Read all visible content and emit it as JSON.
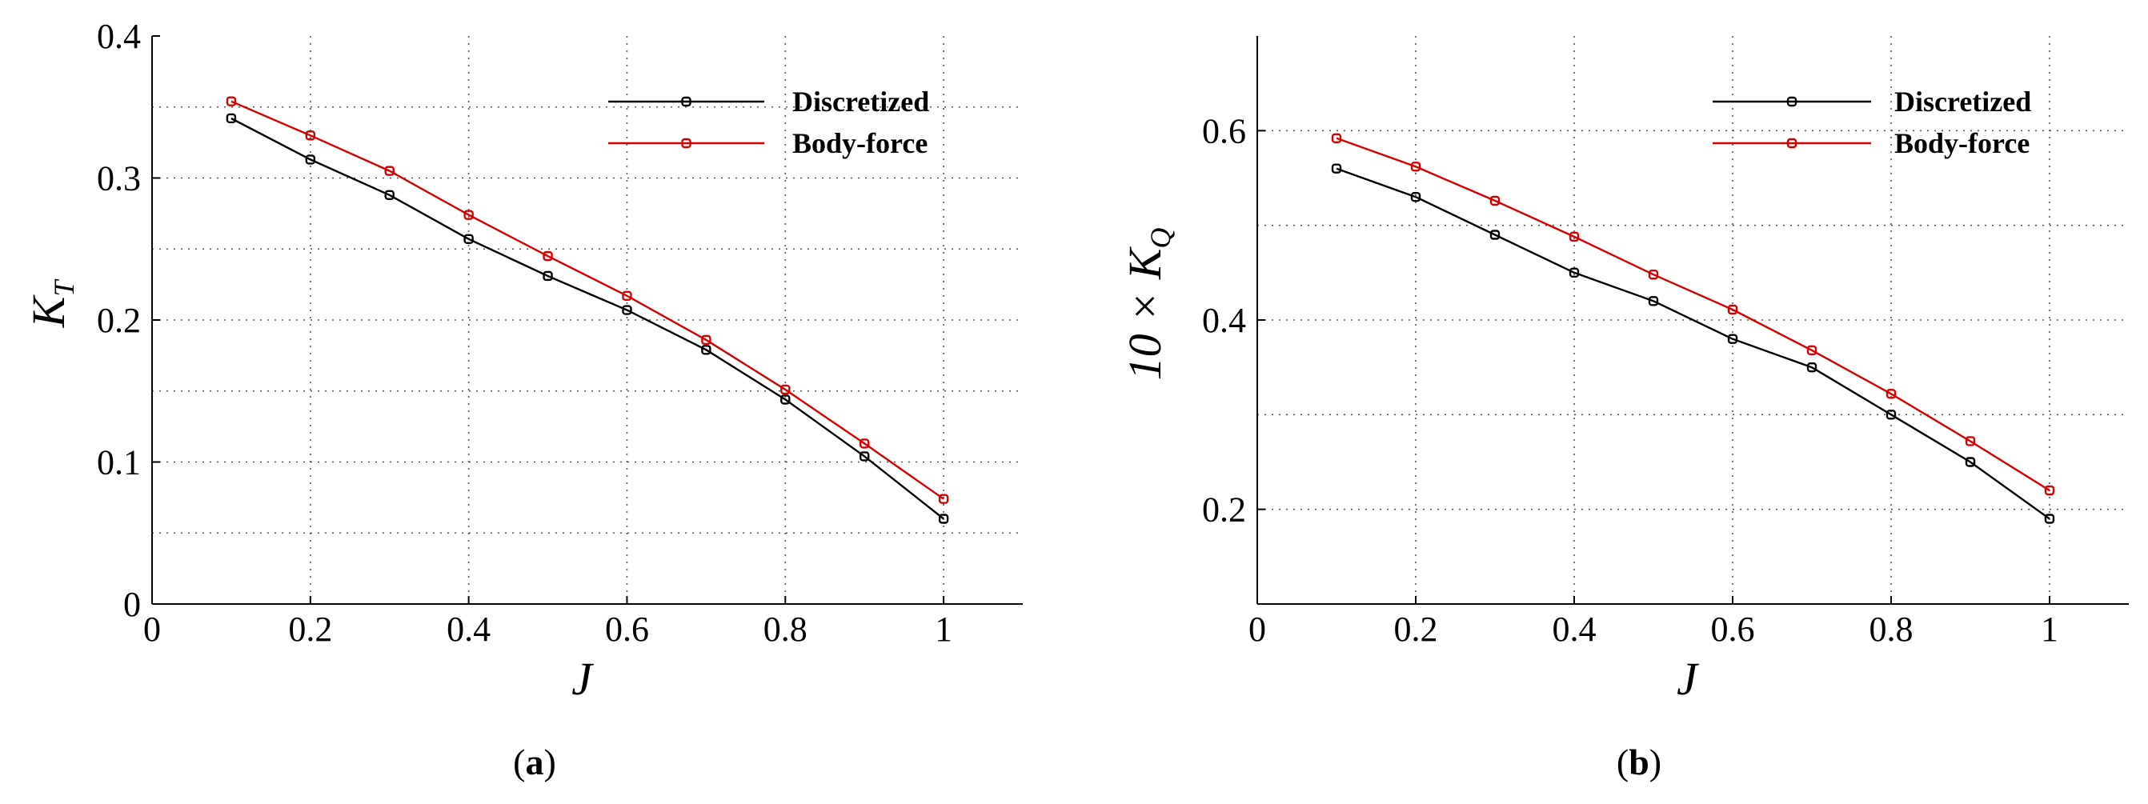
{
  "colors": {
    "discretized": "#000000",
    "body_force": "#d40000"
  },
  "chart_data": [
    {
      "type": "line",
      "panel": "a",
      "caption": "(a)",
      "xlabel": "J",
      "ylabel": "K_T",
      "ylabel_main": "K",
      "ylabel_sub": "T",
      "xlim": [
        0,
        1.1
      ],
      "ylim": [
        0,
        0.4
      ],
      "xticks": [
        0,
        0.2,
        0.4,
        0.6,
        0.8,
        1
      ],
      "xtick_labels": [
        "0",
        "0.2",
        "0.4",
        "0.6",
        "0.8",
        "1"
      ],
      "yticks": [
        0,
        0.1,
        0.2,
        0.3,
        0.4
      ],
      "ytick_labels": [
        "0",
        "0.1",
        "0.2",
        "0.3",
        "0.4"
      ],
      "ygrid": [
        0.05,
        0.1,
        0.15,
        0.2,
        0.25,
        0.3,
        0.35
      ],
      "xgrid": [
        0.2,
        0.4,
        0.6,
        0.8,
        1
      ],
      "legend_position": "top-right",
      "series": [
        {
          "name": "Discretized",
          "color_key": "discretized",
          "x": [
            0.1,
            0.2,
            0.3,
            0.4,
            0.5,
            0.6,
            0.7,
            0.8,
            0.9,
            1.0
          ],
          "y": [
            0.342,
            0.313,
            0.288,
            0.257,
            0.231,
            0.207,
            0.179,
            0.144,
            0.104,
            0.06
          ]
        },
        {
          "name": "Body-force",
          "color_key": "body_force",
          "x": [
            0.1,
            0.2,
            0.3,
            0.4,
            0.5,
            0.6,
            0.7,
            0.8,
            0.9,
            1.0
          ],
          "y": [
            0.354,
            0.33,
            0.305,
            0.274,
            0.245,
            0.217,
            0.186,
            0.151,
            0.113,
            0.074
          ]
        }
      ]
    },
    {
      "type": "line",
      "panel": "b",
      "caption": "(b)",
      "xlabel": "J",
      "ylabel": "10 × K_Q",
      "ylabel_main": "10 × K",
      "ylabel_sub": "Q",
      "xlim": [
        0,
        1.1
      ],
      "ylim": [
        0.1,
        0.7
      ],
      "xticks": [
        0,
        0.2,
        0.4,
        0.6,
        0.8,
        1
      ],
      "xtick_labels": [
        "0",
        "0.2",
        "0.4",
        "0.6",
        "0.8",
        "1"
      ],
      "yticks": [
        0.2,
        0.4,
        0.6
      ],
      "ytick_labels": [
        "0.2",
        "0.4",
        "0.6"
      ],
      "ygrid": [
        0.2,
        0.3,
        0.4,
        0.5,
        0.6
      ],
      "xgrid": [
        0.2,
        0.4,
        0.6,
        0.8,
        1
      ],
      "legend_position": "top-right",
      "series": [
        {
          "name": "Discretized",
          "color_key": "discretized",
          "x": [
            0.1,
            0.2,
            0.3,
            0.4,
            0.5,
            0.6,
            0.7,
            0.8,
            0.9,
            1.0
          ],
          "y": [
            0.56,
            0.53,
            0.49,
            0.45,
            0.42,
            0.38,
            0.35,
            0.3,
            0.25,
            0.19
          ]
        },
        {
          "name": "Body-force",
          "color_key": "body_force",
          "x": [
            0.1,
            0.2,
            0.3,
            0.4,
            0.5,
            0.6,
            0.7,
            0.8,
            0.9,
            1.0
          ],
          "y": [
            0.592,
            0.562,
            0.526,
            0.488,
            0.448,
            0.411,
            0.368,
            0.322,
            0.272,
            0.22
          ]
        }
      ]
    }
  ]
}
